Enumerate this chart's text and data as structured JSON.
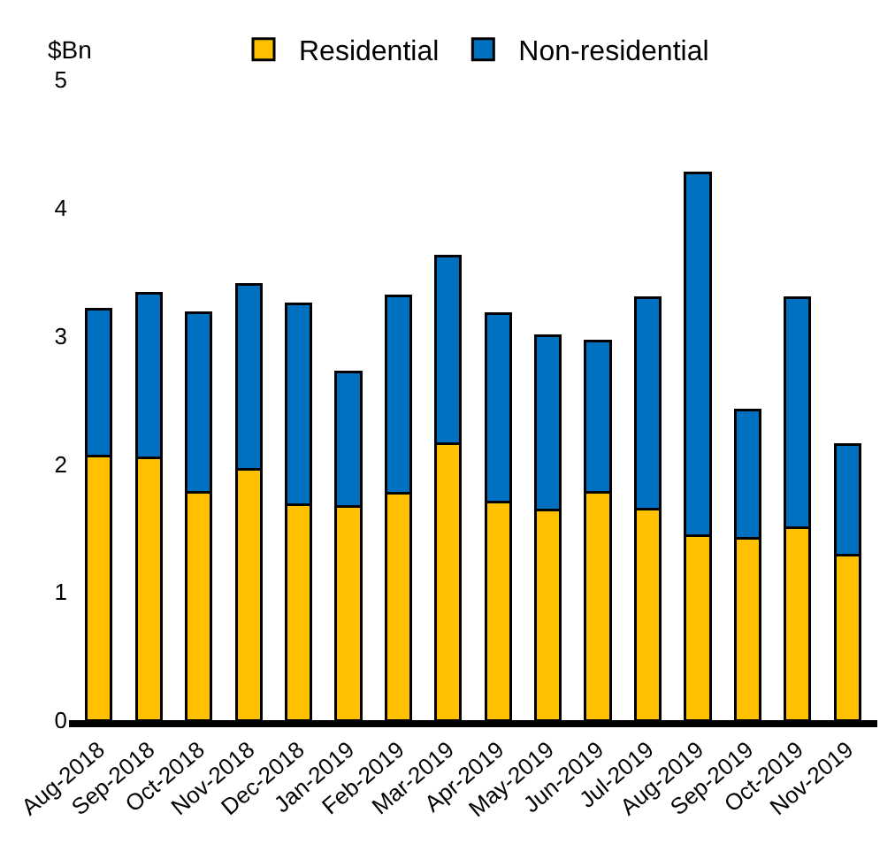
{
  "chart_data": {
    "type": "bar",
    "stacked": true,
    "ylabel": "$Bn",
    "categories": [
      "Aug-2018",
      "Sep-2018",
      "Oct-2018",
      "Nov-2018",
      "Dec-2018",
      "Jan-2019",
      "Feb-2019",
      "Mar-2019",
      "Apr-2019",
      "May-2019",
      "Jun-2019",
      "Jul-2019",
      "Aug-2019",
      "Sep-2019",
      "Oct-2019",
      "Nov-2019"
    ],
    "series": [
      {
        "name": "Residential",
        "color": "#ffc000",
        "values": [
          2.06,
          2.05,
          1.78,
          1.96,
          1.68,
          1.67,
          1.77,
          2.16,
          1.7,
          1.64,
          1.78,
          1.65,
          1.44,
          1.42,
          1.5,
          1.29
        ]
      },
      {
        "name": "Non-residential",
        "color": "#0070c0",
        "values": [
          1.15,
          1.28,
          1.4,
          1.44,
          1.57,
          1.05,
          1.54,
          1.46,
          1.47,
          1.36,
          1.18,
          1.65,
          2.83,
          1.0,
          1.8,
          0.86
        ]
      }
    ],
    "ylim": [
      0,
      5
    ],
    "yticks": [
      0,
      1,
      2,
      3,
      4,
      5
    ],
    "legend": "top"
  }
}
